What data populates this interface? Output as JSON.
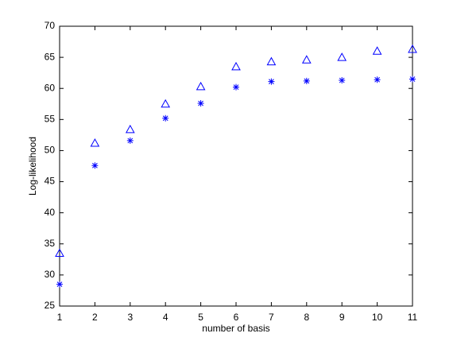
{
  "chart_data": {
    "type": "scatter",
    "x_label": "number of basis",
    "y_label": "Log-likelihood",
    "x": [
      1,
      2,
      3,
      4,
      5,
      6,
      7,
      8,
      9,
      10,
      11
    ],
    "series": [
      {
        "marker": "triangle",
        "color": "#0000ff",
        "values": [
          33.5,
          51.2,
          53.4,
          57.5,
          60.3,
          63.5,
          64.3,
          64.6,
          65.0,
          66.0,
          66.3
        ]
      },
      {
        "marker": "asterisk",
        "color": "#0000ff",
        "values": [
          28.5,
          47.6,
          51.6,
          55.2,
          57.6,
          60.2,
          61.1,
          61.2,
          61.3,
          61.4,
          61.5
        ]
      }
    ],
    "xlim": [
      1,
      11
    ],
    "xticks": [
      1,
      2,
      3,
      4,
      5,
      6,
      7,
      8,
      9,
      10,
      11
    ],
    "ylim": [
      25,
      70
    ],
    "yticks": [
      25,
      30,
      35,
      40,
      45,
      50,
      55,
      60,
      65,
      70
    ],
    "grid": false
  }
}
